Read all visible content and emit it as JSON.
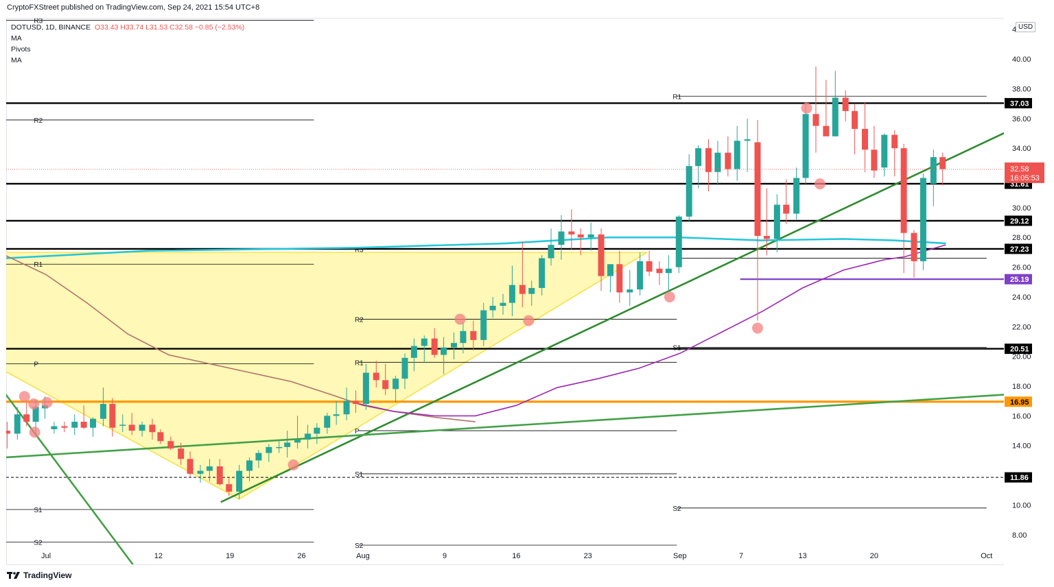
{
  "header": {
    "published_by": "CryptoFXStreet published on TradingView.com, Sep 24, 2021 15:54 UTC+8"
  },
  "legend": {
    "symbol": "DOTUSD, 1D, BINANCE",
    "ohlc": "O33.43  H33.74  L31.53  C32.58  −0.85 (−2.53%)",
    "indicators": [
      "MA",
      "Pivots",
      "MA"
    ]
  },
  "currency": "USD",
  "footer": {
    "brand": "TradingView"
  },
  "colors": {
    "up": "#26a69a",
    "down": "#ef5350",
    "wedge_fill": "#fff59d",
    "wedge_line": "#f5e14a",
    "trend_green": "#2e8b2e",
    "ma_teal": "#26c6da",
    "ma_purple": "#9c27b0",
    "ma_brown": "#b0706a",
    "orange_level": "#ff9800",
    "purple_level": "#7e3fc9",
    "marker": "#f48080"
  },
  "chart_data": {
    "type": "candlestick",
    "symbol": "DOTUSD",
    "timeframe": "1D",
    "x_ticks": [
      {
        "day": 0,
        "label": "Jul"
      },
      {
        "day": 11,
        "label": "12"
      },
      {
        "day": 18,
        "label": "19"
      },
      {
        "day": 25,
        "label": "26"
      },
      {
        "day": 31,
        "label": "Aug"
      },
      {
        "day": 39,
        "label": "9"
      },
      {
        "day": 46,
        "label": "16"
      },
      {
        "day": 53,
        "label": "23"
      },
      {
        "day": 62,
        "label": "Sep"
      },
      {
        "day": 68,
        "label": "7"
      },
      {
        "day": 74,
        "label": "13"
      },
      {
        "day": 81,
        "label": "20"
      },
      {
        "day": 92,
        "label": "Oct"
      }
    ],
    "y_ticks": [
      8,
      10,
      12,
      14,
      16,
      18,
      20,
      22,
      24,
      26,
      28,
      30,
      32,
      34,
      36,
      38,
      40,
      42
    ],
    "ylim": [
      7,
      43.5
    ],
    "xlim": [
      -4,
      96
    ],
    "candles": [
      [
        -3.8,
        15.0,
        15.6,
        13.8,
        14.8
      ],
      [
        -2.8,
        14.8,
        16.6,
        14.4,
        16.1
      ],
      [
        -1.9,
        16.1,
        16.9,
        15.3,
        15.6
      ],
      [
        -1,
        15.6,
        17.1,
        14.7,
        16.6
      ],
      [
        -0.1,
        16.5,
        17.3,
        15.8,
        16.7
      ],
      [
        0.8,
        15.1,
        15.6,
        14.8,
        15.3
      ],
      [
        1.8,
        15.3,
        15.6,
        14.9,
        15.2
      ],
      [
        2.8,
        15.2,
        16.1,
        14.7,
        15.6
      ],
      [
        3.7,
        15.6,
        16.7,
        15.1,
        15.2
      ],
      [
        4.6,
        15.2,
        15.9,
        14.6,
        15.8
      ],
      [
        5.6,
        15.8,
        17.9,
        15.3,
        16.8
      ],
      [
        6.5,
        16.8,
        17.2,
        14.6,
        15.2
      ],
      [
        7.5,
        15.4,
        16.1,
        14.9,
        15.4
      ],
      [
        8.4,
        15.4,
        16.2,
        14.7,
        15.0
      ],
      [
        9.4,
        15.0,
        15.6,
        14.6,
        15.4
      ],
      [
        10.4,
        15.4,
        15.8,
        14.4,
        14.9
      ],
      [
        11.2,
        14.9,
        15.1,
        14.1,
        14.3
      ],
      [
        12.2,
        14.3,
        14.6,
        13.7,
        13.8
      ],
      [
        13.2,
        13.8,
        14.2,
        12.7,
        13.1
      ],
      [
        14.1,
        13.1,
        13.6,
        11.9,
        12.1
      ],
      [
        15.1,
        12.1,
        12.7,
        11.5,
        12.3
      ],
      [
        16,
        12.3,
        13.1,
        11.6,
        12.6
      ],
      [
        17,
        12.6,
        13.1,
        11.3,
        11.4
      ],
      [
        17.9,
        11.4,
        11.8,
        10.6,
        10.9
      ],
      [
        18.9,
        10.9,
        12.7,
        10.4,
        12.3
      ],
      [
        19.9,
        12.3,
        13.2,
        11.6,
        13.0
      ],
      [
        20.8,
        13.0,
        13.7,
        12.5,
        13.5
      ],
      [
        21.8,
        13.5,
        14.1,
        12.9,
        13.9
      ],
      [
        22.8,
        13.9,
        14.4,
        13.5,
        13.9
      ],
      [
        23.6,
        13.9,
        15.0,
        13.2,
        14.2
      ],
      [
        24.6,
        14.2,
        16.0,
        13.8,
        14.4
      ],
      [
        25.6,
        14.4,
        15.4,
        13.8,
        14.8
      ],
      [
        26.5,
        14.8,
        15.5,
        14.1,
        15.2
      ],
      [
        27.5,
        15.2,
        16.2,
        14.8,
        16.0
      ],
      [
        28.4,
        16.0,
        17.0,
        15.4,
        16.1
      ],
      [
        29.4,
        16.1,
        17.9,
        15.7,
        17.0
      ],
      [
        30.3,
        17.0,
        17.7,
        16.2,
        16.8
      ],
      [
        31.3,
        16.8,
        19.5,
        16.4,
        18.9
      ],
      [
        32.3,
        18.9,
        19.7,
        17.9,
        18.4
      ],
      [
        33.2,
        18.4,
        19.5,
        17.4,
        17.8
      ],
      [
        34.2,
        17.8,
        18.7,
        16.9,
        18.5
      ],
      [
        35.1,
        18.5,
        20.2,
        17.8,
        19.9
      ],
      [
        36,
        19.9,
        21.2,
        19.0,
        20.7
      ],
      [
        37,
        20.7,
        21.4,
        19.6,
        21.2
      ],
      [
        38,
        21.2,
        21.9,
        19.9,
        20.1
      ],
      [
        38.9,
        20.1,
        21.3,
        18.8,
        20.6
      ],
      [
        39.9,
        20.6,
        21.6,
        19.8,
        20.9
      ],
      [
        40.8,
        20.9,
        22.3,
        20.2,
        21.7
      ],
      [
        41.8,
        21.7,
        22.4,
        20.4,
        21.1
      ],
      [
        42.8,
        21.1,
        23.6,
        20.7,
        23.1
      ],
      [
        43.7,
        23.1,
        24.0,
        22.6,
        23.4
      ],
      [
        44.7,
        23.4,
        24.2,
        22.8,
        23.6
      ],
      [
        45.6,
        23.6,
        26.1,
        22.7,
        24.8
      ],
      [
        46.6,
        24.8,
        27.7,
        23.3,
        24.2
      ],
      [
        47.5,
        24.2,
        25.1,
        23.4,
        24.6
      ],
      [
        48.5,
        24.6,
        26.8,
        24.1,
        26.6
      ],
      [
        49.4,
        26.6,
        28.6,
        26.1,
        27.5
      ],
      [
        50.4,
        27.5,
        29.5,
        26.5,
        28.4
      ],
      [
        51.4,
        28.4,
        29.9,
        27.2,
        28.2
      ],
      [
        52.3,
        28.2,
        28.6,
        26.8,
        28.0
      ],
      [
        53.3,
        28.0,
        29.0,
        27.1,
        28.2
      ],
      [
        54.3,
        28.2,
        28.6,
        24.4,
        25.4
      ],
      [
        55.2,
        25.4,
        26.0,
        24.3,
        26.2
      ],
      [
        56.1,
        26.2,
        27.1,
        23.6,
        24.3
      ],
      [
        57.1,
        24.3,
        25.8,
        23.4,
        24.5
      ],
      [
        58.1,
        24.5,
        27.0,
        24.1,
        26.4
      ],
      [
        59,
        26.4,
        27.1,
        25.4,
        25.7
      ],
      [
        60,
        25.9,
        26.4,
        24.8,
        25.6
      ],
      [
        60.9,
        25.6,
        26.8,
        24.3,
        25.9
      ],
      [
        61.9,
        26.0,
        29.5,
        25.6,
        29.4
      ],
      [
        62.9,
        29.4,
        33.6,
        29.1,
        32.8
      ],
      [
        63.8,
        32.8,
        34.2,
        31.3,
        34.0
      ],
      [
        64.8,
        34.0,
        34.6,
        31.1,
        32.4
      ],
      [
        65.7,
        32.4,
        34.5,
        31.5,
        33.7
      ],
      [
        66.7,
        33.7,
        34.8,
        32.1,
        32.6
      ],
      [
        67.6,
        32.6,
        35.5,
        31.8,
        34.5
      ],
      [
        68.6,
        34.5,
        36.0,
        32.4,
        34.6
      ],
      [
        69.6,
        34.4,
        35.9,
        22.4,
        28.1
      ],
      [
        70.5,
        28.1,
        31.3,
        26.8,
        27.9
      ],
      [
        71.5,
        27.9,
        30.9,
        27.0,
        30.2
      ],
      [
        72.4,
        30.2,
        31.9,
        28.9,
        29.6
      ],
      [
        73.4,
        29.6,
        32.7,
        29.2,
        32.0
      ],
      [
        74.3,
        32.0,
        37.1,
        31.6,
        36.3
      ],
      [
        75.3,
        36.3,
        39.5,
        33.7,
        35.5
      ],
      [
        76.3,
        35.5,
        38.6,
        34.9,
        34.8
      ],
      [
        77.2,
        34.8,
        39.2,
        34.8,
        37.4
      ],
      [
        78.2,
        37.4,
        37.9,
        35.8,
        36.5
      ],
      [
        79.1,
        36.5,
        37.0,
        33.6,
        35.3
      ],
      [
        80.1,
        35.3,
        37.1,
        32.4,
        33.9
      ],
      [
        81,
        33.9,
        35.5,
        32.0,
        32.5
      ],
      [
        82,
        32.7,
        35.0,
        32.1,
        34.9
      ],
      [
        83,
        34.9,
        35.2,
        32.1,
        34.0
      ],
      [
        83.9,
        34.0,
        34.3,
        25.6,
        28.3
      ],
      [
        84.9,
        28.3,
        28.5,
        25.3,
        26.4
      ],
      [
        85.8,
        26.4,
        32.3,
        25.8,
        32.0
      ],
      [
        86.8,
        31.6,
        33.9,
        30.1,
        33.4
      ],
      [
        87.7,
        33.4,
        33.7,
        31.5,
        32.6
      ]
    ],
    "horizontal_levels": [
      {
        "value": 37.03,
        "label": "37.03",
        "color": "#000000"
      },
      {
        "value": 31.61,
        "label": "31.61",
        "color": "#000000"
      },
      {
        "value": 29.12,
        "label": "29.12",
        "color": "#000000"
      },
      {
        "value": 27.23,
        "label": "27.23",
        "color": "#000000"
      },
      {
        "value": 25.19,
        "label": "25.19",
        "color": "#7e3fc9"
      },
      {
        "value": 20.51,
        "label": "20.51",
        "color": "#000000"
      },
      {
        "value": 16.95,
        "label": "16.95",
        "color": "#ff9800"
      },
      {
        "value": 11.86,
        "label": "11.86",
        "color": "#000000",
        "dashed": true
      }
    ],
    "last_price": {
      "value": 32.58,
      "label": "32.58",
      "countdown": "16:05:53"
    },
    "pivots": [
      {
        "name": "R3",
        "x0": -4,
        "x1": 26.2,
        "value": 42.6
      },
      {
        "name": "R2",
        "x0": -4,
        "x1": 26.2,
        "value": 35.9
      },
      {
        "name": "R1",
        "x0": -4,
        "x1": 26.2,
        "value": 26.2
      },
      {
        "name": "P",
        "x0": -4,
        "x1": 26.2,
        "value": 19.5
      },
      {
        "name": "S1",
        "x0": -4,
        "x1": 26.2,
        "value": 9.7
      },
      {
        "name": "S2",
        "x0": -4,
        "x1": 26.2,
        "value": 7.5
      },
      {
        "name": "R3",
        "x0": 30.6,
        "x1": 61.7,
        "value": 27.2
      },
      {
        "name": "R2",
        "x0": 30.6,
        "x1": 61.7,
        "value": 22.5
      },
      {
        "name": "R1",
        "x0": 30.6,
        "x1": 61.7,
        "value": 19.6
      },
      {
        "name": "P",
        "x0": 30.6,
        "x1": 61.7,
        "value": 15.0
      },
      {
        "name": "S1",
        "x0": 30.6,
        "x1": 61.7,
        "value": 12.1
      },
      {
        "name": "S2",
        "x0": 30.6,
        "x1": 61.7,
        "value": 7.3
      },
      {
        "name": "R1",
        "x0": 61.7,
        "x1": 92,
        "value": 37.5
      },
      {
        "name": "",
        "x0": 61.7,
        "x1": 92,
        "value": 26.6
      },
      {
        "name": "S1",
        "x0": 61.7,
        "x1": 92,
        "value": 20.6
      },
      {
        "name": "S2",
        "x0": 61.7,
        "x1": 92,
        "value": 9.8
      }
    ],
    "annotations": [
      {
        "x": -2.1,
        "y": 17.3
      },
      {
        "x": -1.2,
        "y": 16.8
      },
      {
        "x": -1.1,
        "y": 14.9
      },
      {
        "x": 0.1,
        "y": 16.9
      },
      {
        "x": 24.2,
        "y": 12.7
      },
      {
        "x": 40.5,
        "y": 22.5
      },
      {
        "x": 47.2,
        "y": 22.4
      },
      {
        "x": 61,
        "y": 24.0
      },
      {
        "x": 69.6,
        "y": 21.9
      },
      {
        "x": 74.4,
        "y": 36.7
      },
      {
        "x": 75.7,
        "y": 31.6
      }
    ]
  }
}
